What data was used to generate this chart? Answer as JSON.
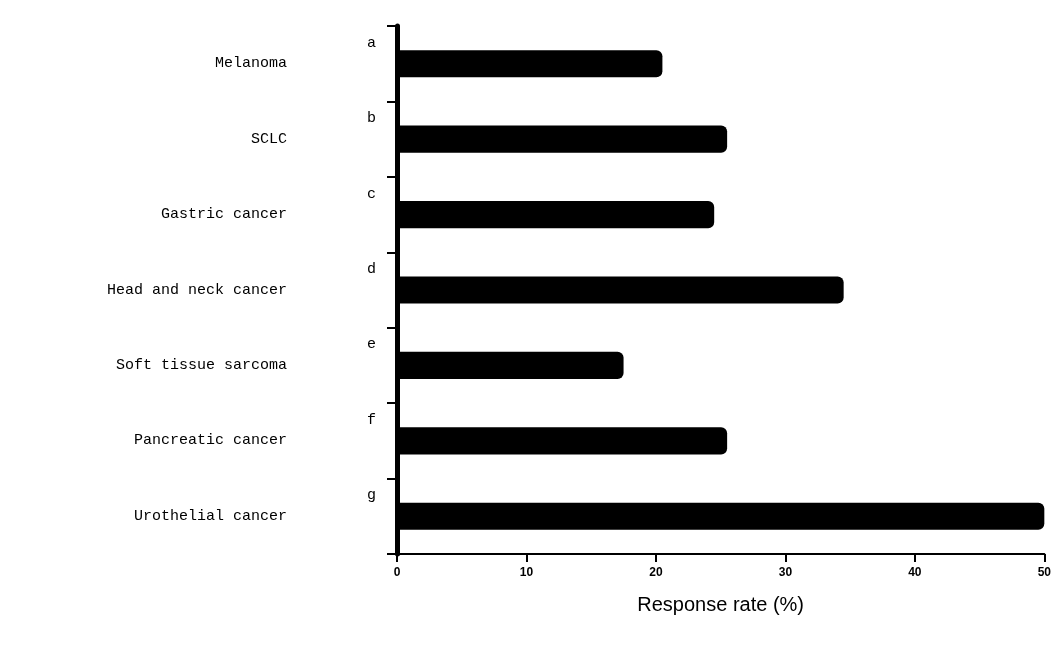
{
  "chart_data": {
    "type": "bar",
    "orientation": "horizontal",
    "xlabel": "Response rate (%)",
    "categories": [
      "Melanoma",
      "SCLC",
      "Gastric cancer",
      "Head and neck cancer",
      "Soft tissue sarcoma",
      "Pancreatic cancer",
      "Urothelial cancer"
    ],
    "values": [
      20.5,
      25.5,
      24.5,
      34.5,
      17.5,
      25.5,
      50
    ],
    "color": "#000000",
    "xlim": [
      0,
      50
    ],
    "xticks": [
      0,
      10,
      20,
      30,
      40,
      50
    ],
    "grid": false,
    "annotations": [
      "a",
      "b",
      "c",
      "d",
      "e",
      "f",
      "g"
    ]
  }
}
